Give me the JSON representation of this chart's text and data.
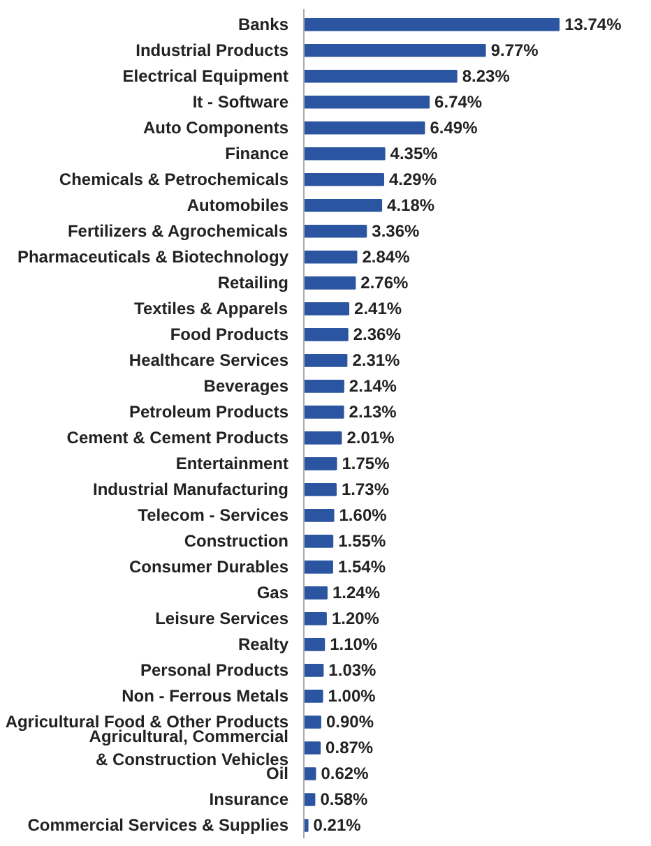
{
  "chart_data": {
    "type": "bar",
    "orientation": "horizontal",
    "data_labels": true,
    "color": "#2b55a0",
    "categories": [
      "Banks",
      "Industrial Products",
      "Electrical Equipment",
      "It - Software",
      "Auto Components",
      "Finance",
      "Chemicals & Petrochemicals",
      "Automobiles",
      "Fertilizers & Agrochemicals",
      "Pharmaceuticals & Biotechnology",
      "Retailing",
      "Textiles & Apparels",
      "Food Products",
      "Healthcare Services",
      "Beverages",
      "Petroleum Products",
      "Cement & Cement Products",
      "Entertainment",
      "Industrial Manufacturing",
      "Telecom - Services",
      "Construction",
      "Consumer Durables",
      "Gas",
      "Leisure Services",
      "Realty",
      "Personal Products",
      "Non - Ferrous Metals",
      "Agricultural Food & Other Products",
      "Agricultural, Commercial & Construction Vehicles",
      "Oil",
      "Insurance",
      "Commercial Services & Supplies"
    ],
    "values": [
      13.74,
      9.77,
      8.23,
      6.74,
      6.49,
      4.35,
      4.29,
      4.18,
      3.36,
      2.84,
      2.76,
      2.41,
      2.36,
      2.31,
      2.14,
      2.13,
      2.01,
      1.75,
      1.73,
      1.6,
      1.55,
      1.54,
      1.24,
      1.2,
      1.1,
      1.03,
      1.0,
      0.9,
      0.87,
      0.62,
      0.58,
      0.21
    ],
    "value_labels": [
      "13.74%",
      "9.77%",
      "8.23%",
      "6.74%",
      "6.49%",
      "4.35%",
      "4.29%",
      "4.18%",
      "3.36%",
      "2.84%",
      "2.76%",
      "2.41%",
      "2.36%",
      "2.31%",
      "2.14%",
      "2.13%",
      "2.01%",
      "1.75%",
      "1.73%",
      "1.60%",
      "1.55%",
      "1.54%",
      "1.24%",
      "1.20%",
      "1.10%",
      "1.03%",
      "1.00%",
      "0.90%",
      "0.87%",
      "0.62%",
      "0.58%",
      "0.21%"
    ]
  }
}
